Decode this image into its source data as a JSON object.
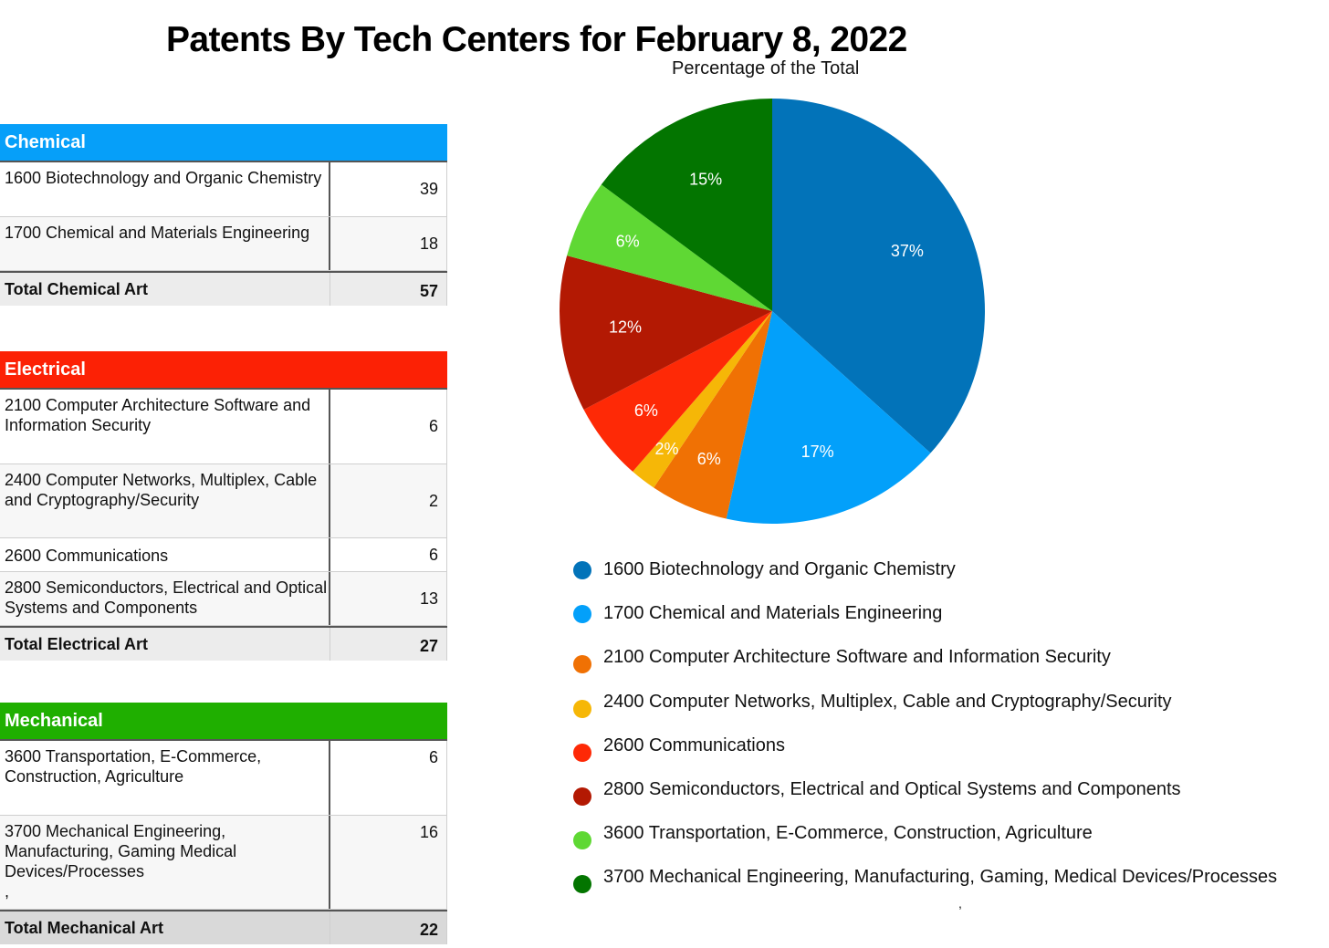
{
  "title": "Patents By Tech Centers for February 8, 2022",
  "tables": {
    "chemical": {
      "header": "Chemical",
      "color": "#069ff9",
      "rows": [
        {
          "name": "1600 Biotechnology and Organic Chemistry",
          "count": "39"
        },
        {
          "name": "1700 Chemical and Materials Engineering",
          "count": "18"
        }
      ],
      "total_label": "Total Chemical Art",
      "total": "57"
    },
    "electrical": {
      "header": "Electrical",
      "color": "#fc2105",
      "rows": [
        {
          "name": "2100 Computer Architecture Software and Information Security",
          "count": "6"
        },
        {
          "name": "2400 Computer Networks, Multiplex, Cable and Cryptography/Security",
          "count": "2"
        },
        {
          "name": "2600 Communications",
          "count": "6"
        },
        {
          "name": "2800 Semiconductors, Electrical and Optical Systems and Components",
          "count": "13"
        }
      ],
      "total_label": "Total Electrical Art",
      "total": "27"
    },
    "mechanical": {
      "header": "Mechanical",
      "color": "#1faf00",
      "rows": [
        {
          "name": "3600 Transportation, E-Commerce, Construction, Agriculture",
          "count": "6"
        },
        {
          "name": "3700 Mechanical Engineering, Manufacturing, Gaming Medical Devices/Processes",
          "count": "16",
          "trailing_mark": ","
        }
      ],
      "total_label": "Total Mechanical Art",
      "total": "22"
    }
  },
  "chart_data": {
    "type": "pie",
    "title": "Percentage of the Total",
    "slices": [
      {
        "label": "1600 Biotechnology and Organic Chemistry",
        "value": 37,
        "display": "37%",
        "color": "#0273b9"
      },
      {
        "label": "1700 Chemical and Materials Engineering",
        "value": 17,
        "display": "17%",
        "color": "#03a0fa"
      },
      {
        "label": "2100 Computer Architecture Software and Information Security",
        "value": 6,
        "display": "6%",
        "color": "#f07104"
      },
      {
        "label": "2400 Computer Networks, Multiplex, Cable and Cryptography/Security",
        "value": 2,
        "display": "2%",
        "color": "#f6b707"
      },
      {
        "label": "2600 Communications",
        "value": 6,
        "display": "6%",
        "color": "#fe2906"
      },
      {
        "label": "2800 Semiconductors, Electrical and Optical Systems and Components",
        "value": 12,
        "display": "12%",
        "color": "#b31903"
      },
      {
        "label": "3600 Transportation, E-Commerce, Construction, Agriculture",
        "value": 6,
        "display": "6%",
        "color": "#5fd834"
      },
      {
        "label": "3700 Mechanical Engineering, Manufacturing, Gaming, Medical Devices/Processes",
        "value": 15,
        "display": "15%",
        "color": "#037500"
      }
    ],
    "legend_placement": "bottom"
  },
  "stray_mark": ","
}
